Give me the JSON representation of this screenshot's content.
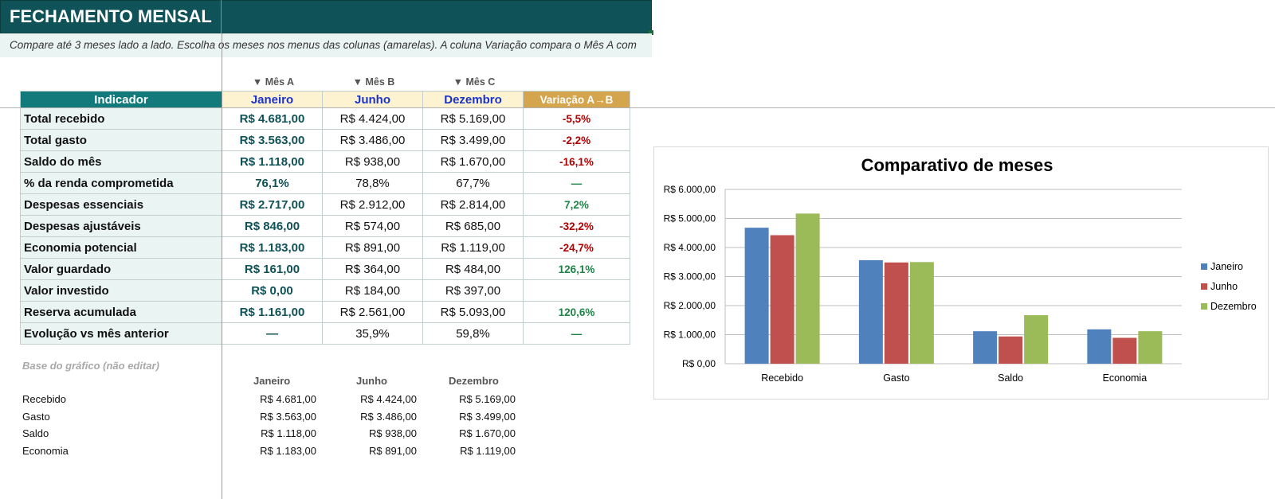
{
  "sheet": {
    "title": "FECHAMENTO MENSAL",
    "subtitle": "Compare até 3 meses lado a lado. Escolha os meses nos menus das colunas (amarelas). A coluna Variação compara o Mês A com"
  },
  "selectors": [
    {
      "hint": "▼ Mês A",
      "value": "Janeiro"
    },
    {
      "hint": "▼ Mês B",
      "value": "Junho"
    },
    {
      "hint": "▼ Mês C",
      "value": "Dezembro"
    }
  ],
  "table": {
    "header_indicator": "Indicador",
    "header_variation": "Variação A→B",
    "rows": [
      {
        "label": "Total recebido",
        "a": "R$ 4.681,00",
        "b": "R$ 4.424,00",
        "c": "R$ 5.169,00",
        "var": "-5,5%",
        "var_color": "#b00000"
      },
      {
        "label": "Total gasto",
        "a": "R$ 3.563,00",
        "b": "R$ 3.486,00",
        "c": "R$ 3.499,00",
        "var": "-2,2%",
        "var_color": "#b00000"
      },
      {
        "label": "Saldo do mês",
        "a": "R$ 1.118,00",
        "b": "R$ 938,00",
        "c": "R$ 1.670,00",
        "var": "-16,1%",
        "var_color": "#b00000"
      },
      {
        "label": "% da renda comprometida",
        "a": "76,1%",
        "b": "78,8%",
        "c": "67,7%",
        "var": "—",
        "var_color": "#1e8446"
      },
      {
        "label": "Despesas essenciais",
        "a": "R$ 2.717,00",
        "b": "R$ 2.912,00",
        "c": "R$ 2.814,00",
        "var": "7,2%",
        "var_color": "#1e8446"
      },
      {
        "label": "Despesas ajustáveis",
        "a": "R$ 846,00",
        "b": "R$ 574,00",
        "c": "R$ 685,00",
        "var": "-32,2%",
        "var_color": "#b00000"
      },
      {
        "label": "Economia potencial",
        "a": "R$ 1.183,00",
        "b": "R$ 891,00",
        "c": "R$ 1.119,00",
        "var": "-24,7%",
        "var_color": "#b00000"
      },
      {
        "label": "Valor guardado",
        "a": "R$ 161,00",
        "b": "R$ 364,00",
        "c": "R$ 484,00",
        "var": "126,1%",
        "var_color": "#1e8446"
      },
      {
        "label": "Valor investido",
        "a": "R$ 0,00",
        "b": "R$ 184,00",
        "c": "R$ 397,00",
        "var": "",
        "var_color": "#1e8446"
      },
      {
        "label": "Reserva acumulada",
        "a": "R$ 1.161,00",
        "b": "R$ 2.561,00",
        "c": "R$ 5.093,00",
        "var": "120,6%",
        "var_color": "#1e8446"
      },
      {
        "label": "Evolução vs mês anterior",
        "a": "—",
        "b": "35,9%",
        "c": "59,8%",
        "var": "—",
        "var_color": "#1e8446"
      }
    ]
  },
  "chart_base": {
    "title": "Base do gráfico (não editar)",
    "headers": [
      "Janeiro",
      "Junho",
      "Dezembro"
    ],
    "rows": [
      {
        "label": "Recebido",
        "values": [
          "R$ 4.681,00",
          "R$ 4.424,00",
          "R$ 5.169,00"
        ]
      },
      {
        "label": "Gasto",
        "values": [
          "R$ 3.563,00",
          "R$ 3.486,00",
          "R$ 3.499,00"
        ]
      },
      {
        "label": "Saldo",
        "values": [
          "R$ 1.118,00",
          "R$ 938,00",
          "R$ 1.670,00"
        ]
      },
      {
        "label": "Economia",
        "values": [
          "R$ 1.183,00",
          "R$ 891,00",
          "R$ 1.119,00"
        ]
      }
    ]
  },
  "chart_data": {
    "type": "bar",
    "title": "Comparativo de meses",
    "categories": [
      "Recebido",
      "Gasto",
      "Saldo",
      "Economia"
    ],
    "series": [
      {
        "name": "Janeiro",
        "values": [
          4681,
          3563,
          1118,
          1183
        ],
        "color": "#4f81bd"
      },
      {
        "name": "Junho",
        "values": [
          4424,
          3486,
          938,
          891
        ],
        "color": "#c0504d"
      },
      {
        "name": "Dezembro",
        "values": [
          5169,
          3499,
          1670,
          1119
        ],
        "color": "#9bbb59"
      }
    ],
    "ylim": [
      0,
      6000
    ],
    "yticks": [
      {
        "value": 0,
        "label": "R$ 0,00"
      },
      {
        "value": 1000,
        "label": "R$ 1.000,00"
      },
      {
        "value": 2000,
        "label": "R$ 2.000,00"
      },
      {
        "value": 3000,
        "label": "R$ 3.000,00"
      },
      {
        "value": 4000,
        "label": "R$ 4.000,00"
      },
      {
        "value": 5000,
        "label": "R$ 5.000,00"
      },
      {
        "value": 6000,
        "label": "R$ 6.000,00"
      }
    ],
    "grid": true,
    "legend": "right",
    "xlabel": "",
    "ylabel": ""
  }
}
